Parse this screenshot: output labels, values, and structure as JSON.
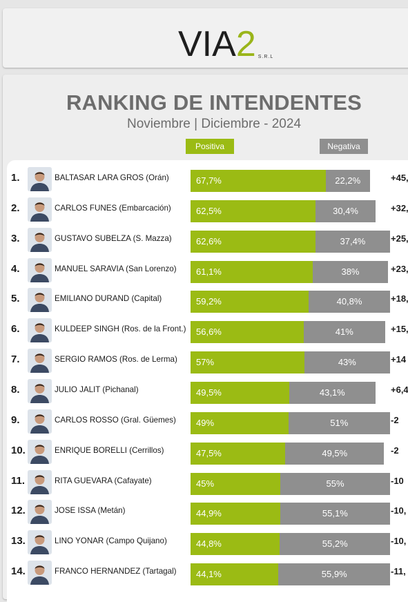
{
  "brand": {
    "logo_main": "VIA",
    "logo_accent": "2",
    "logo_suffix": "S.R.L",
    "accent_color": "#9bbb14",
    "negative_color": "#8f8f8f"
  },
  "chart_data": {
    "type": "bar",
    "stacked": true,
    "orientation": "horizontal",
    "title": "RANKING DE INTENDENTES",
    "subtitle": "Noviembre | Diciembre - 2024",
    "legend": [
      "Positiva",
      "Negativa"
    ],
    "legend_placement": "top",
    "grid": false,
    "xlim": [
      0,
      100
    ],
    "rows": [
      {
        "rank": "1.",
        "name": "BALTASAR LARA GROS (Orán)",
        "positive": 67.7,
        "positive_label": "67,7%",
        "negative": 22.2,
        "negative_label": "22,2%",
        "diff": "+45,"
      },
      {
        "rank": "2.",
        "name": "CARLOS FUNES (Embarcación)",
        "positive": 62.5,
        "positive_label": "62,5%",
        "negative": 30.4,
        "negative_label": "30,4%",
        "diff": "+32,"
      },
      {
        "rank": "3.",
        "name": "GUSTAVO SUBELZA (S. Mazza)",
        "positive": 62.6,
        "positive_label": "62,6%",
        "negative": 37.4,
        "negative_label": "37,4%",
        "diff": "+25,"
      },
      {
        "rank": "4.",
        "name": "MANUEL SARAVIA (San Lorenzo)",
        "positive": 61.1,
        "positive_label": "61,1%",
        "negative": 38,
        "negative_label": "38%",
        "diff": "+23,"
      },
      {
        "rank": "5.",
        "name": "EMILIANO DURAND (Capital)",
        "positive": 59.2,
        "positive_label": "59,2%",
        "negative": 40.8,
        "negative_label": "40,8%",
        "diff": "+18,"
      },
      {
        "rank": "6.",
        "name": "KULDEEP SINGH (Ros. de la Front.)",
        "positive": 56.6,
        "positive_label": "56,6%",
        "negative": 41,
        "negative_label": "41%",
        "diff": "+15,"
      },
      {
        "rank": "7.",
        "name": "SERGIO RAMOS (Ros. de Lerma)",
        "positive": 57,
        "positive_label": "57%",
        "negative": 43,
        "negative_label": "43%",
        "diff": "+14"
      },
      {
        "rank": "8.",
        "name": "JULIO JALIT (Pichanal)",
        "positive": 49.5,
        "positive_label": "49,5%",
        "negative": 43.1,
        "negative_label": "43,1%",
        "diff": "+6,4"
      },
      {
        "rank": "9.",
        "name": "CARLOS ROSSO (Gral. Güemes)",
        "positive": 49,
        "positive_label": "49%",
        "negative": 51,
        "negative_label": "51%",
        "diff": "-2"
      },
      {
        "rank": "10.",
        "name": "ENRIQUE BORELLI (Cerrillos)",
        "positive": 47.5,
        "positive_label": "47,5%",
        "negative": 49.5,
        "negative_label": "49,5%",
        "diff": "-2"
      },
      {
        "rank": "11.",
        "name": "RITA GUEVARA (Cafayate)",
        "positive": 45,
        "positive_label": "45%",
        "negative": 55,
        "negative_label": "55%",
        "diff": "-10"
      },
      {
        "rank": "12.",
        "name": "JOSE ISSA (Metán)",
        "positive": 44.9,
        "positive_label": "44,9%",
        "negative": 55.1,
        "negative_label": "55,1%",
        "diff": "-10,"
      },
      {
        "rank": "13.",
        "name": "LINO YONAR (Campo Quijano)",
        "positive": 44.8,
        "positive_label": "44,8%",
        "negative": 55.2,
        "negative_label": "55,2%",
        "diff": "-10,"
      },
      {
        "rank": "14.",
        "name": "FRANCO HERNANDEZ (Tartagal)",
        "positive": 44.1,
        "positive_label": "44,1%",
        "negative": 55.9,
        "negative_label": "55,9%",
        "diff": "-11,"
      }
    ]
  }
}
